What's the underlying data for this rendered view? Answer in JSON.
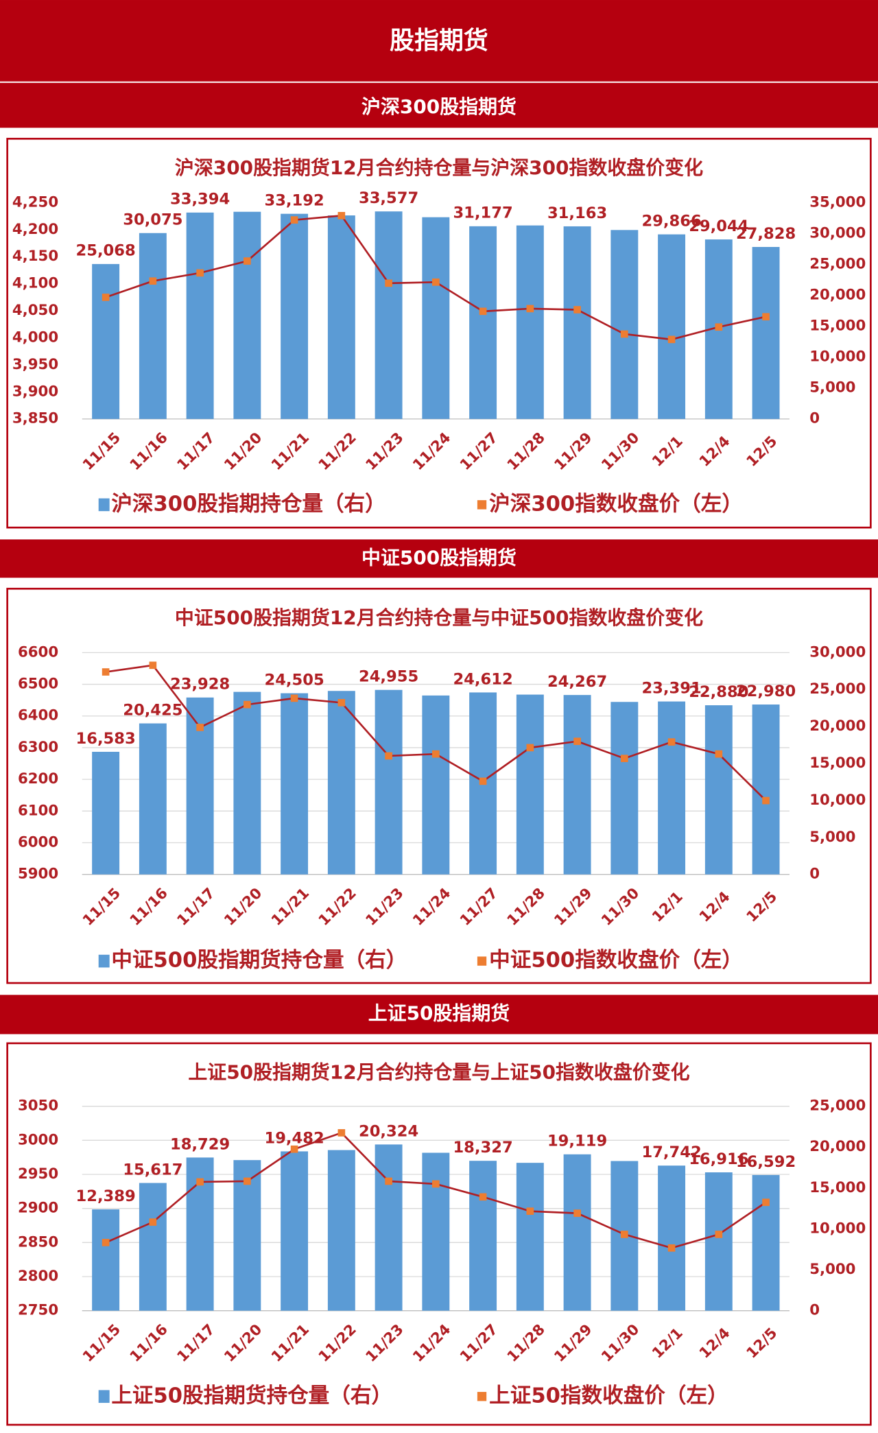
{
  "header": {
    "title": "股指期货"
  },
  "sections": [
    "沪深300股指期货",
    "中证500股指期货",
    "上证50股指期货"
  ],
  "chart_data": [
    {
      "type": "combo",
      "title": "沪深300股指期货12月合约持仓量与沪深300指数收盘价变化",
      "categories": [
        "11/15",
        "11/16",
        "11/17",
        "11/20",
        "11/21",
        "11/22",
        "11/23",
        "11/24",
        "11/27",
        "11/28",
        "11/29",
        "11/30",
        "12/1",
        "12/4",
        "12/5"
      ],
      "series": [
        {
          "name": "沪深300股指期持仓量（右）",
          "type": "bar",
          "axis": "y2",
          "color": "#5b9bd5",
          "values": [
            25068,
            30075,
            33394,
            33520,
            33192,
            32930,
            33577,
            32640,
            31177,
            31310,
            31163,
            30570,
            29866,
            29044,
            27828
          ],
          "value_labels": [
            "25,068",
            "30,075",
            "33,394",
            null,
            "33,192",
            null,
            "33,577",
            null,
            "31,177",
            null,
            "31,163",
            null,
            "29,866",
            "29,044",
            "27,828"
          ]
        },
        {
          "name": "沪深300指数收盘价（左）",
          "type": "line",
          "color": "#b01f24",
          "marker_color": "#ed7d31",
          "values": [
            4075,
            4105,
            4120,
            4142,
            4218,
            4226,
            4101,
            4103,
            4049,
            4054,
            4052,
            4007,
            3997,
            4020,
            4039
          ]
        }
      ],
      "ylim": [
        3850,
        4250
      ],
      "yticks": [
        {
          "value": 3850,
          "label": "3,850"
        },
        {
          "value": 3900,
          "label": "3,900"
        },
        {
          "value": 3950,
          "label": "3,950"
        },
        {
          "value": 4000,
          "label": "4,000"
        },
        {
          "value": 4050,
          "label": "4,050"
        },
        {
          "value": 4100,
          "label": "4,100"
        },
        {
          "value": 4150,
          "label": "4,150"
        },
        {
          "value": 4200,
          "label": "4,200"
        },
        {
          "value": 4250,
          "label": "4,250"
        }
      ],
      "y2lim": [
        0,
        35000
      ],
      "y2ticks": [
        0,
        {
          "value": 5000,
          "label": "5,000"
        },
        {
          "value": 10000,
          "label": "10,000"
        },
        {
          "value": 15000,
          "label": "15,000"
        },
        {
          "value": 20000,
          "label": "20,000"
        },
        {
          "value": 25000,
          "label": "25,000"
        },
        {
          "value": 30000,
          "label": "30,000"
        },
        {
          "value": 35000,
          "label": "35,000"
        }
      ],
      "grid": false
    },
    {
      "type": "combo",
      "title": "中证500股指期货12月合约持仓量与中证500指数收盘价变化",
      "categories": [
        "11/15",
        "11/16",
        "11/17",
        "11/20",
        "11/21",
        "11/22",
        "11/23",
        "11/24",
        "11/27",
        "11/28",
        "11/29",
        "11/30",
        "12/1",
        "12/4",
        "12/5"
      ],
      "series": [
        {
          "name": "中证500股指期货持仓量（右）",
          "type": "bar",
          "axis": "y2",
          "color": "#5b9bd5",
          "values": [
            16583,
            20425,
            23928,
            24690,
            24505,
            24815,
            24955,
            24200,
            24612,
            24320,
            24267,
            23330,
            23391,
            22880,
            22980
          ],
          "value_labels": [
            "16,583",
            "20,425",
            "23,928",
            null,
            "24,505",
            null,
            "24,955",
            null,
            "24,612",
            null,
            "24,267",
            null,
            "23,391",
            "22,880",
            "22,980"
          ]
        },
        {
          "name": "中证500指数收盘价（左）",
          "type": "line",
          "color": "#b01f24",
          "marker_color": "#ed7d31",
          "values": [
            6539,
            6560,
            6364,
            6436,
            6456,
            6442,
            6274,
            6280,
            6194,
            6300,
            6320,
            6266,
            6318,
            6280,
            6133
          ]
        }
      ],
      "ylim": [
        5900,
        6600
      ],
      "yticks": [
        5900,
        6000,
        6100,
        6200,
        6300,
        6400,
        6500,
        6600
      ],
      "y2lim": [
        0,
        30000
      ],
      "y2ticks": [
        0,
        {
          "value": 5000,
          "label": "5,000"
        },
        {
          "value": 10000,
          "label": "10,000"
        },
        {
          "value": 15000,
          "label": "15,000"
        },
        {
          "value": 20000,
          "label": "20,000"
        },
        {
          "value": 25000,
          "label": "25,000"
        },
        {
          "value": 30000,
          "label": "30,000"
        }
      ],
      "grid": true
    },
    {
      "type": "combo",
      "title": "上证50股指期货12月合约持仓量与上证50指数收盘价变化",
      "categories": [
        "11/15",
        "11/16",
        "11/17",
        "11/20",
        "11/21",
        "11/22",
        "11/23",
        "11/24",
        "11/27",
        "11/28",
        "11/29",
        "11/30",
        "12/1",
        "12/4",
        "12/5"
      ],
      "series": [
        {
          "name": "上证50股指期货持仓量（右）",
          "type": "bar",
          "axis": "y2",
          "color": "#5b9bd5",
          "values": [
            12389,
            15617,
            18729,
            18415,
            19482,
            19640,
            20324,
            19310,
            18327,
            18080,
            19119,
            18300,
            17742,
            16916,
            16592
          ],
          "value_labels": [
            "12,389",
            "15,617",
            "18,729",
            null,
            "19,482",
            null,
            "20,324",
            null,
            "18,327",
            null,
            "19,119",
            null,
            "17,742",
            "16,916",
            "16,592"
          ]
        },
        {
          "name": "上证50指数收盘价（左）",
          "type": "line",
          "color": "#b01f24",
          "marker_color": "#ed7d31",
          "values": [
            2850,
            2880,
            2939,
            2940,
            2987,
            3011,
            2940,
            2936,
            2917,
            2896,
            2893,
            2862,
            2842,
            2862,
            2909
          ]
        }
      ],
      "ylim": [
        2750,
        3050
      ],
      "yticks": [
        2750,
        2800,
        2850,
        2900,
        2950,
        3000,
        3050
      ],
      "y2lim": [
        0,
        25000
      ],
      "y2ticks": [
        0,
        {
          "value": 5000,
          "label": "5,000"
        },
        {
          "value": 10000,
          "label": "10,000"
        },
        {
          "value": 15000,
          "label": "15,000"
        },
        {
          "value": 20000,
          "label": "20,000"
        },
        {
          "value": 25000,
          "label": "25,000"
        }
      ],
      "grid": true
    }
  ]
}
